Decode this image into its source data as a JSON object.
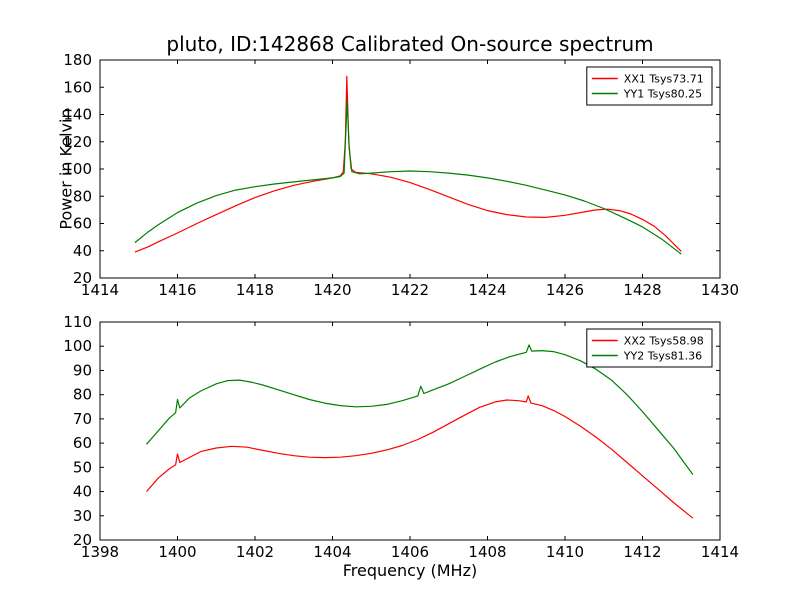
{
  "figure": {
    "title": "pluto, ID:142868 Calibrated On-source spectrum",
    "xlabel": "Frequency (MHz)",
    "ylabel": "Power in Kelvin"
  },
  "chart_data": [
    {
      "type": "line",
      "title": "pluto, ID:142868 Calibrated On-source spectrum",
      "xlabel": "",
      "ylabel": "Power in Kelvin",
      "xlim": [
        1414,
        1430
      ],
      "ylim": [
        20,
        180
      ],
      "xticks": [
        1414,
        1416,
        1418,
        1420,
        1422,
        1424,
        1426,
        1428,
        1430
      ],
      "yticks": [
        20,
        40,
        60,
        80,
        100,
        120,
        140,
        160,
        180
      ],
      "grid": false,
      "legend_position": "upper right",
      "series": [
        {
          "name": "XX1 Tsys73.71",
          "color": "#ff0000",
          "points": [
            [
              1414.9,
              39
            ],
            [
              1415.25,
              43
            ],
            [
              1415.5,
              46.5
            ],
            [
              1416,
              53
            ],
            [
              1416.5,
              60
            ],
            [
              1417,
              66.5
            ],
            [
              1417.5,
              73
            ],
            [
              1418,
              79
            ],
            [
              1418.5,
              84
            ],
            [
              1419,
              88
            ],
            [
              1419.5,
              91
            ],
            [
              1420,
              93.5
            ],
            [
              1420.2,
              95
            ],
            [
              1420.28,
              98
            ],
            [
              1420.33,
              120
            ],
            [
              1420.37,
              168
            ],
            [
              1420.42,
              120
            ],
            [
              1420.48,
              100
            ],
            [
              1420.6,
              97.5
            ],
            [
              1421,
              96.5
            ],
            [
              1421.5,
              94
            ],
            [
              1422,
              90
            ],
            [
              1422.5,
              85
            ],
            [
              1423,
              79.5
            ],
            [
              1423.5,
              74
            ],
            [
              1424,
              69.5
            ],
            [
              1424.5,
              66.5
            ],
            [
              1425,
              64.8
            ],
            [
              1425.5,
              64.5
            ],
            [
              1426,
              66
            ],
            [
              1426.5,
              68.5
            ],
            [
              1426.8,
              70
            ],
            [
              1427.1,
              70.5
            ],
            [
              1427.4,
              69.5
            ],
            [
              1427.7,
              67
            ],
            [
              1428,
              63
            ],
            [
              1428.3,
              58
            ],
            [
              1428.6,
              51
            ],
            [
              1429,
              39.5
            ]
          ]
        },
        {
          "name": "YY1 Tsys80.25",
          "color": "#008000",
          "points": [
            [
              1414.9,
              46
            ],
            [
              1415.25,
              54
            ],
            [
              1415.5,
              59
            ],
            [
              1416,
              68
            ],
            [
              1416.5,
              75
            ],
            [
              1417,
              80.5
            ],
            [
              1417.5,
              84.5
            ],
            [
              1418,
              87
            ],
            [
              1418.5,
              89
            ],
            [
              1419,
              90.5
            ],
            [
              1419.5,
              92
            ],
            [
              1420,
              93.5
            ],
            [
              1420.2,
              94.5
            ],
            [
              1420.3,
              97
            ],
            [
              1420.34,
              125
            ],
            [
              1420.38,
              150
            ],
            [
              1420.43,
              115
            ],
            [
              1420.5,
              98
            ],
            [
              1420.7,
              96.5
            ],
            [
              1421,
              97
            ],
            [
              1421.5,
              98
            ],
            [
              1422,
              98.5
            ],
            [
              1422.5,
              98
            ],
            [
              1423,
              97
            ],
            [
              1423.5,
              95.5
            ],
            [
              1424,
              93.5
            ],
            [
              1424.5,
              91
            ],
            [
              1425,
              88
            ],
            [
              1425.5,
              84.5
            ],
            [
              1426,
              81
            ],
            [
              1426.5,
              76.5
            ],
            [
              1427,
              71
            ],
            [
              1427.5,
              64.5
            ],
            [
              1428,
              57.5
            ],
            [
              1428.5,
              48.5
            ],
            [
              1429,
              37.5
            ]
          ]
        }
      ]
    },
    {
      "type": "line",
      "title": "",
      "xlabel": "Frequency (MHz)",
      "ylabel": "",
      "xlim": [
        1398,
        1414
      ],
      "ylim": [
        20,
        110
      ],
      "xticks": [
        1398,
        1400,
        1402,
        1404,
        1406,
        1408,
        1410,
        1412,
        1414
      ],
      "yticks": [
        20,
        30,
        40,
        50,
        60,
        70,
        80,
        90,
        100,
        110
      ],
      "grid": false,
      "legend_position": "upper right",
      "series": [
        {
          "name": "XX2 Tsys58.98",
          "color": "#ff0000",
          "points": [
            [
              1399.2,
              40
            ],
            [
              1399.5,
              45.5
            ],
            [
              1399.8,
              49.5
            ],
            [
              1399.95,
              51
            ],
            [
              1400,
              55.5
            ],
            [
              1400.06,
              52
            ],
            [
              1400.3,
              54
            ],
            [
              1400.6,
              56.5
            ],
            [
              1401,
              58
            ],
            [
              1401.4,
              58.7
            ],
            [
              1401.8,
              58.3
            ],
            [
              1402.2,
              57
            ],
            [
              1402.6,
              55.8
            ],
            [
              1403,
              54.8
            ],
            [
              1403.4,
              54.2
            ],
            [
              1403.8,
              54
            ],
            [
              1404.2,
              54.2
            ],
            [
              1404.6,
              54.8
            ],
            [
              1405,
              55.8
            ],
            [
              1405.4,
              57.2
            ],
            [
              1405.8,
              59
            ],
            [
              1406.2,
              61.5
            ],
            [
              1406.6,
              64.5
            ],
            [
              1407,
              68
            ],
            [
              1407.4,
              71.5
            ],
            [
              1407.8,
              74.8
            ],
            [
              1408.2,
              77
            ],
            [
              1408.5,
              77.8
            ],
            [
              1408.8,
              77.5
            ],
            [
              1409,
              77
            ],
            [
              1409.05,
              79.5
            ],
            [
              1409.12,
              76.5
            ],
            [
              1409.4,
              75.5
            ],
            [
              1409.7,
              73.5
            ],
            [
              1410,
              71
            ],
            [
              1410.4,
              67
            ],
            [
              1410.8,
              62.5
            ],
            [
              1411.2,
              57.5
            ],
            [
              1411.6,
              52
            ],
            [
              1412,
              46.5
            ],
            [
              1412.4,
              41
            ],
            [
              1412.8,
              35.5
            ],
            [
              1413.3,
              29
            ]
          ]
        },
        {
          "name": "YY2 Tsys81.36",
          "color": "#008000",
          "points": [
            [
              1399.2,
              59.5
            ],
            [
              1399.5,
              65
            ],
            [
              1399.8,
              70.5
            ],
            [
              1399.95,
              72.5
            ],
            [
              1400,
              78
            ],
            [
              1400.06,
              74.5
            ],
            [
              1400.3,
              78.5
            ],
            [
              1400.6,
              81.5
            ],
            [
              1401,
              84.5
            ],
            [
              1401.3,
              85.8
            ],
            [
              1401.6,
              86
            ],
            [
              1401.9,
              85.2
            ],
            [
              1402.2,
              84
            ],
            [
              1402.6,
              82
            ],
            [
              1403,
              80
            ],
            [
              1403.4,
              78
            ],
            [
              1403.8,
              76.5
            ],
            [
              1404.2,
              75.5
            ],
            [
              1404.6,
              75
            ],
            [
              1405,
              75.2
            ],
            [
              1405.4,
              76
            ],
            [
              1405.8,
              77.5
            ],
            [
              1406.2,
              79.5
            ],
            [
              1406.28,
              83.5
            ],
            [
              1406.36,
              80.5
            ],
            [
              1406.6,
              82
            ],
            [
              1407,
              84.5
            ],
            [
              1407.4,
              87.5
            ],
            [
              1407.8,
              90.5
            ],
            [
              1408.2,
              93.5
            ],
            [
              1408.6,
              95.8
            ],
            [
              1409,
              97.5
            ],
            [
              1409.07,
              100.5
            ],
            [
              1409.14,
              98
            ],
            [
              1409.4,
              98.2
            ],
            [
              1409.7,
              97.8
            ],
            [
              1410,
              96.5
            ],
            [
              1410.4,
              94
            ],
            [
              1410.8,
              90.5
            ],
            [
              1411.2,
              86
            ],
            [
              1411.6,
              80
            ],
            [
              1412,
              73
            ],
            [
              1412.4,
              65.5
            ],
            [
              1412.8,
              58
            ],
            [
              1413.3,
              47
            ]
          ]
        }
      ]
    }
  ]
}
